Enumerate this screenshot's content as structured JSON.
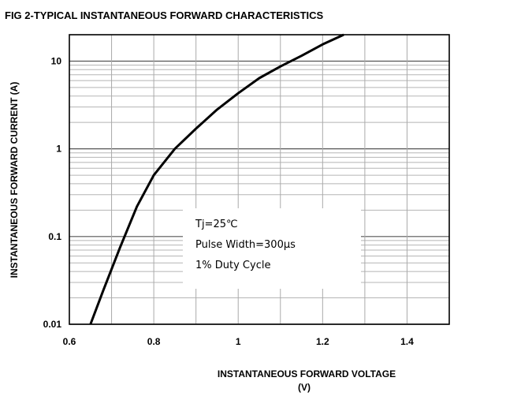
{
  "chart_data": {
    "type": "line",
    "title": "FIG 2-TYPICAL INSTANTANEOUS FORWARD CHARACTERISTICS",
    "xlabel_line1": "INSTANTANEOUS FORWARD VOLTAGE",
    "xlabel_line2": "(V)",
    "ylabel": "INSTANTANEOUS FORWARD CURRENT (A)",
    "xlim": [
      0.6,
      1.5
    ],
    "ylim": [
      0.01,
      20
    ],
    "yscale": "log",
    "grid": true,
    "x_ticks": [
      0.6,
      0.8,
      1.0,
      1.2,
      1.4
    ],
    "x_tick_labels": [
      "0.6",
      "0.8",
      "1",
      "1.2",
      "1.4"
    ],
    "y_ticks": [
      0.01,
      0.1,
      1,
      10
    ],
    "y_tick_labels": [
      "0.01",
      "0.1",
      "1",
      "10"
    ],
    "annotation": [
      "Tj=25℃",
      "Pulse Width=300μs",
      "1% Duty Cycle"
    ],
    "series": [
      {
        "x": [
          0.65,
          0.68,
          0.72,
          0.76,
          0.8,
          0.85,
          0.9,
          0.95,
          1.0,
          1.05,
          1.1,
          1.15,
          1.2,
          1.25
        ],
        "y": [
          0.01,
          0.024,
          0.075,
          0.22,
          0.5,
          1.0,
          1.7,
          2.8,
          4.3,
          6.4,
          8.7,
          11.5,
          15.5,
          20
        ]
      }
    ]
  }
}
